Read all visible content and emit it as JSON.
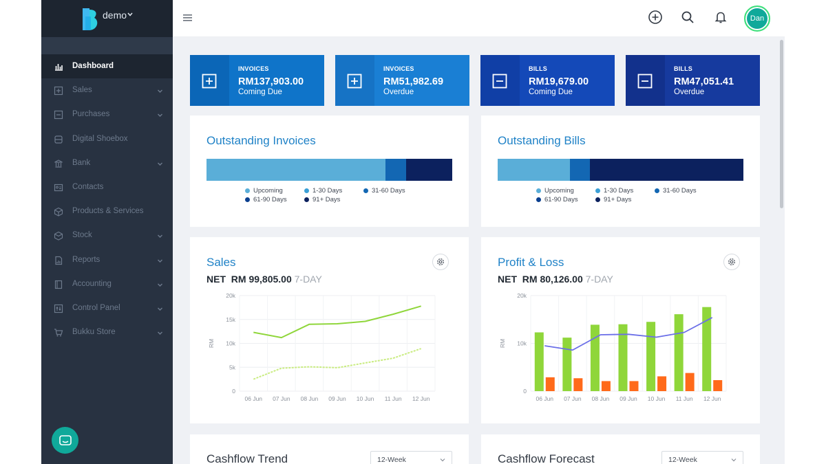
{
  "colors": {
    "sidebar": "#283241",
    "accent": "#1f82c7",
    "teal": "#10a99a",
    "series_green": "#8fd63a",
    "series_orange": "#ff6a1a",
    "series_purple": "#6b6fe8"
  },
  "brand": {
    "workspace": "demo",
    "logo_icon": "bukku-b-logo"
  },
  "sidebar": {
    "items": [
      {
        "label": "Dashboard",
        "icon": "bar-chart-icon",
        "active": true,
        "expandable": false
      },
      {
        "label": "Sales",
        "icon": "plus-square-icon",
        "active": false,
        "expandable": true
      },
      {
        "label": "Purchases",
        "icon": "minus-square-icon",
        "active": false,
        "expandable": true
      },
      {
        "label": "Digital Shoebox",
        "icon": "archive-icon",
        "active": false,
        "expandable": false
      },
      {
        "label": "Bank",
        "icon": "bank-icon",
        "active": false,
        "expandable": true
      },
      {
        "label": "Contacts",
        "icon": "contact-card-icon",
        "active": false,
        "expandable": false
      },
      {
        "label": "Products & Services",
        "icon": "cube-icon",
        "active": false,
        "expandable": false
      },
      {
        "label": "Stock",
        "icon": "box-icon",
        "active": false,
        "expandable": true
      },
      {
        "label": "Reports",
        "icon": "report-icon",
        "active": false,
        "expandable": true
      },
      {
        "label": "Accounting",
        "icon": "ledger-icon",
        "active": false,
        "expandable": true
      },
      {
        "label": "Control Panel",
        "icon": "sliders-icon",
        "active": false,
        "expandable": true
      },
      {
        "label": "Bukku Store",
        "icon": "cart-icon",
        "active": false,
        "expandable": true
      }
    ]
  },
  "topbar": {
    "menu_icon": "hamburger-icon",
    "add_icon": "plus-circle-icon",
    "search_icon": "search-icon",
    "notification_icon": "bell-icon",
    "avatar_initials": "Dan"
  },
  "summary_cards": [
    {
      "kicker": "INVOICES",
      "amount": "RM137,903.00",
      "note": "Coming Due",
      "icon": "plus-box-icon",
      "color": "#0f74c9",
      "icon_bg": "#0b66b7"
    },
    {
      "kicker": "INVOICES",
      "amount": "RM51,982.69",
      "note": "Overdue",
      "icon": "plus-box-icon",
      "color": "#1a7fd4",
      "icon_bg": "#1673c5"
    },
    {
      "kicker": "BILLS",
      "amount": "RM19,679.00",
      "note": "Coming Due",
      "icon": "minus-box-icon",
      "color": "#1449b8",
      "icon_bg": "#103fa6"
    },
    {
      "kicker": "BILLS",
      "amount": "RM47,051.41",
      "note": "Overdue",
      "icon": "minus-box-icon",
      "color": "#163a9e",
      "icon_bg": "#12318c"
    }
  ],
  "outstanding_invoices": {
    "title": "Outstanding Invoices",
    "aging_fractions": [
      0.727,
      0.0,
      0.085,
      0.0,
      0.188
    ]
  },
  "outstanding_bills": {
    "title": "Outstanding Bills",
    "aging_fractions": [
      0.293,
      0.0,
      0.081,
      0.0,
      0.626
    ]
  },
  "aging_legend": [
    {
      "label": "Upcoming",
      "color": "#5aaed8"
    },
    {
      "label": "1-30 Days",
      "color": "#3a9fd6"
    },
    {
      "label": "31-60 Days",
      "color": "#1367b3"
    },
    {
      "label": "61-90 Days",
      "color": "#0a3f8f"
    },
    {
      "label": "91+ Days",
      "color": "#0c215e"
    }
  ],
  "sales_panel": {
    "title": "Sales",
    "net_label": "NET",
    "net_value": "RM 99,805.00",
    "period": "7-DAY",
    "gear_icon": "gear-icon"
  },
  "pnl_panel": {
    "title": "Profit & Loss",
    "net_label": "NET",
    "net_value": "RM 80,126.00",
    "period": "7-DAY",
    "gear_icon": "gear-icon"
  },
  "cashflow_trend": {
    "title": "Cashflow Trend",
    "select_value": "12-Week"
  },
  "cashflow_forecast": {
    "title": "Cashflow Forecast",
    "select_value": "12-Week"
  },
  "chart_data": [
    {
      "type": "line",
      "title": "Sales",
      "ylabel": "RM",
      "x": [
        "06 Jun",
        "07 Jun",
        "08 Jun",
        "09 Jun",
        "10 Jun",
        "11 Jun",
        "12 Jun"
      ],
      "y_ticks": [
        "0",
        "5k",
        "10k",
        "15k",
        "20k"
      ],
      "ylim": [
        0,
        20000
      ],
      "grid": true,
      "series": [
        {
          "values": [
            12300,
            11200,
            14000,
            14100,
            14600,
            16100,
            17800
          ],
          "color": "#8fd63a",
          "style": "solid"
        },
        {
          "values": [
            2500,
            4800,
            5100,
            4900,
            5900,
            6900,
            8900
          ],
          "color": "#c9ec80",
          "style": "dashed"
        }
      ]
    },
    {
      "type": "bar",
      "title": "Profit & Loss",
      "ylabel": "RM",
      "categories": [
        "06 Jun",
        "07 Jun",
        "08 Jun",
        "09 Jun",
        "10 Jun",
        "11 Jun",
        "12 Jun"
      ],
      "y_ticks": [
        "0",
        "10k",
        "20k"
      ],
      "ylim": [
        0,
        20000
      ],
      "grid": true,
      "series": [
        {
          "values": [
            12300,
            11200,
            13900,
            14000,
            14500,
            16100,
            17600
          ],
          "color": "#8fd63a",
          "kind": "bar"
        },
        {
          "values": [
            2900,
            2700,
            2100,
            2100,
            3100,
            3800,
            2300
          ],
          "color": "#ff6a1a",
          "kind": "bar"
        },
        {
          "values": [
            9500,
            8600,
            11800,
            11900,
            11300,
            12300,
            15400
          ],
          "color": "#6b6fe8",
          "kind": "line"
        }
      ]
    }
  ]
}
